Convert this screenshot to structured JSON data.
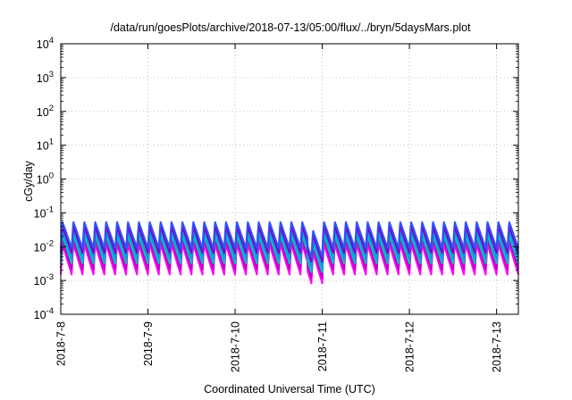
{
  "chart_data": {
    "type": "line",
    "title": "/data/run/goesPlots/archive/2018-07-13/05:00/flux/../bryn/5daysMars.plot",
    "xlabel": "Coordinated Universal Time (UTC)",
    "ylabel": "cGy/day",
    "y_scale": "log",
    "ylim": [
      0.0001,
      10000
    ],
    "xlim": [
      "2018-07-08T00:00",
      "2018-07-13T06:00"
    ],
    "x_ticks": [
      "2018-7-8",
      "2018-7-9",
      "2018-7-10",
      "2018-7-11",
      "2018-7-12",
      "2018-7-13"
    ],
    "y_ticks": [
      {
        "base": "10",
        "exp": "-4"
      },
      {
        "base": "10",
        "exp": "-3"
      },
      {
        "base": "10",
        "exp": "-2"
      },
      {
        "base": "10",
        "exp": "-1"
      },
      {
        "base": "10",
        "exp": "0"
      },
      {
        "base": "10",
        "exp": "1"
      },
      {
        "base": "10",
        "exp": "2"
      },
      {
        "base": "10",
        "exp": "3"
      },
      {
        "base": "10",
        "exp": "4"
      }
    ],
    "grid": true,
    "legend": "none",
    "pattern": {
      "description": "sawtooth diurnal-like oscillation, ~8 peaks per day, same shape for all series",
      "cycles_per_day": 8,
      "rise_fraction": 0.15,
      "dip": {
        "at": "2018-07-10T20:00",
        "end": "2018-07-11T00:00",
        "factor": 0.55
      }
    },
    "series": [
      {
        "color": "#ff00ff",
        "peak": 0.012,
        "trough": 0.0015
      },
      {
        "color": "#c000c0",
        "peak": 0.016,
        "trough": 0.0022
      },
      {
        "color": "#00c0c0",
        "peak": 0.022,
        "trough": 0.0032
      },
      {
        "color": "#00a0e0",
        "peak": 0.03,
        "trough": 0.0045
      },
      {
        "color": "#8000c0",
        "peak": 0.04,
        "trough": 0.0065
      },
      {
        "color": "#3050ff",
        "peak": 0.055,
        "trough": 0.009
      }
    ]
  }
}
